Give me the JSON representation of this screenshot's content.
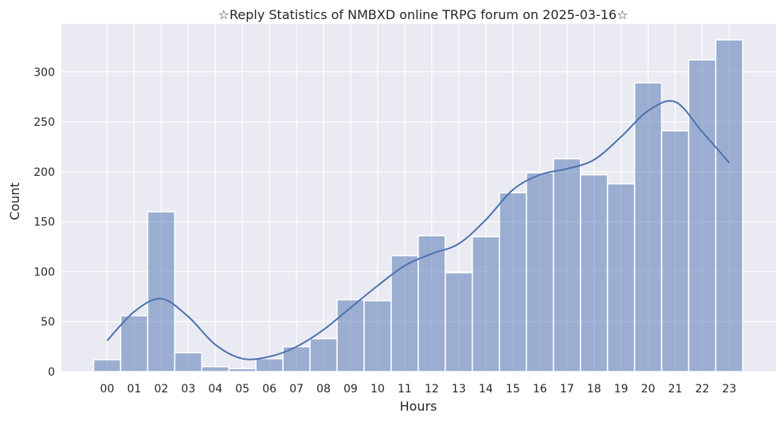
{
  "chart_data": {
    "type": "bar",
    "title": "☆Reply Statistics of NMBXD online TRPG forum on 2025-03-16☆",
    "xlabel": "Hours",
    "ylabel": "Count",
    "categories": [
      "00",
      "01",
      "02",
      "03",
      "04",
      "05",
      "06",
      "07",
      "08",
      "09",
      "10",
      "11",
      "12",
      "13",
      "14",
      "15",
      "16",
      "17",
      "18",
      "19",
      "20",
      "21",
      "22",
      "23"
    ],
    "values": [
      12,
      56,
      160,
      19,
      5,
      3,
      13,
      25,
      33,
      72,
      71,
      116,
      136,
      99,
      135,
      179,
      199,
      213,
      197,
      188,
      289,
      241,
      312,
      332
    ],
    "kde": [
      31,
      60,
      73,
      55,
      27,
      13,
      15,
      25,
      42,
      64,
      86,
      106,
      118,
      128,
      152,
      182,
      197,
      203,
      212,
      235,
      261,
      270,
      240,
      209
    ],
    "ylim": [
      0,
      348
    ],
    "yticks": [
      0,
      50,
      100,
      150,
      200,
      250,
      300
    ],
    "grid": true,
    "colors": {
      "background": "#eaeaf2",
      "grid": "#ffffff",
      "bar_fill": "#4c72b0",
      "bar_fill_opacity": 0.5,
      "bar_edge": "#ffffff",
      "kde_line": "#4c72b0",
      "text": "#262626"
    }
  }
}
